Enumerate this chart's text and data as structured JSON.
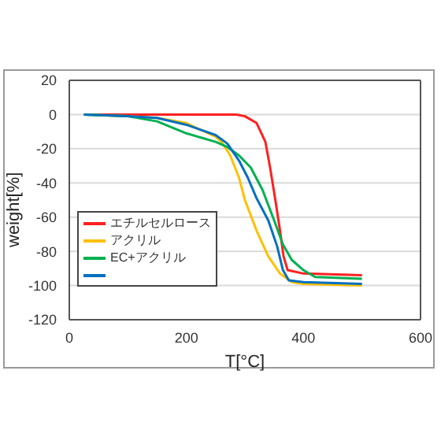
{
  "chart_data": {
    "type": "line",
    "xlabel": "T[°C]",
    "ylabel": "weight[%]",
    "xlim": [
      0,
      600
    ],
    "xticks": [
      0,
      200,
      400,
      600
    ],
    "ylim": [
      -120,
      20
    ],
    "yticks": [
      -120,
      -100,
      -80,
      -60,
      -40,
      -20,
      0,
      20
    ],
    "grid": "y",
    "legend": "bottom left",
    "marker": "none",
    "line_style": "solid",
    "series": [
      {
        "name": "エチルセルロース",
        "color": "#ff2020",
        "x": [
          25,
          100,
          200,
          285,
          300,
          320,
          335,
          343,
          352,
          360,
          366,
          373,
          400,
          500
        ],
        "values": [
          0,
          0,
          0,
          0,
          -1,
          -5,
          -16,
          -31,
          -50,
          -68,
          -83,
          -91,
          -93,
          -94
        ]
      },
      {
        "name": "アクリル",
        "color": "#ffc000",
        "x": [
          25,
          100,
          150,
          200,
          250,
          260,
          275,
          290,
          300,
          320,
          340,
          360,
          380,
          400,
          500
        ],
        "values": [
          0,
          -1,
          -2,
          -5,
          -13,
          -16,
          -24,
          -37,
          -50,
          -68,
          -83,
          -93,
          -98,
          -99,
          -100
        ]
      },
      {
        "name": "EC+アクリル",
        "color": "#00b050",
        "x": [
          25,
          100,
          150,
          200,
          250,
          270,
          290,
          310,
          330,
          350,
          365,
          380,
          400,
          420,
          500
        ],
        "values": [
          0,
          -1,
          -4,
          -11,
          -16,
          -19,
          -24,
          -31,
          -44,
          -62,
          -76,
          -85,
          -91,
          -95,
          -96
        ]
      },
      {
        "color": "#0070c0",
        "x": [
          25,
          100,
          150,
          200,
          250,
          270,
          290,
          305,
          320,
          340,
          355,
          365,
          375,
          400,
          500
        ],
        "values": [
          0,
          -1,
          -2,
          -6,
          -12,
          -17,
          -27,
          -37,
          -49,
          -62,
          -77,
          -91,
          -97,
          -98,
          -99
        ]
      }
    ]
  }
}
